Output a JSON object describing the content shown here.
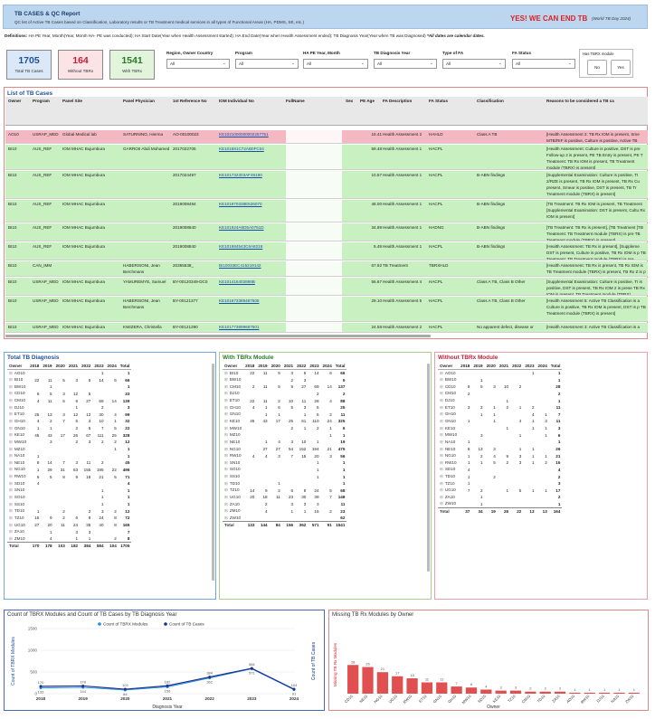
{
  "header": {
    "title": "TB CASES & QC Report",
    "subtitle": "QC list of Active TB Cases based on Classification, Laboratory results or TB Treatment medical services in all types of Functional Areas (HA, PDMS, SE, etc.)",
    "slogan": "YES! WE CAN END TB",
    "world_day": "(World TB Day 2024)"
  },
  "definitions": {
    "label": "Definitions:",
    "text": "HA PE Year, Month(Year, Month HA- PE was conducted); HA Start Date(Year when Health Assessment started); HA End Date(Year when Health Assessment ended); TB Diagnosis Year(Year when TB was Diagnosed)",
    "note": "*All dates are calendar dates."
  },
  "kpis": [
    {
      "value": "1705",
      "label": "Total TB Cases",
      "bg": "#dbe8f8",
      "color": "#1f4f9c"
    },
    {
      "value": "164",
      "label": "Without TBRx",
      "bg": "#fbe3e6",
      "color": "#c0203a"
    },
    {
      "value": "1541",
      "label": "With TBRx",
      "bg": "#e2f5dc",
      "color": "#267a26"
    }
  ],
  "filters": [
    {
      "label": "Region, Owner Country",
      "value": "All"
    },
    {
      "label": "Program",
      "value": "All"
    },
    {
      "label": "HA PE Year, Month",
      "value": "All"
    },
    {
      "label": "TB Diagnosis Year",
      "value": "All"
    },
    {
      "label": "Type of FA",
      "value": "All"
    },
    {
      "label": "FA Status",
      "value": "All"
    }
  ],
  "tbrx_filter": {
    "label": "Has TBRX module",
    "no": "No",
    "yes": "Yes"
  },
  "list": {
    "title": "List of TB Cases",
    "columns": [
      "Owner",
      "Program",
      "Panel Site",
      "Panel Physician",
      "1st Reference No",
      "IOM Individual No",
      "FullName",
      "Sex",
      "PE Age",
      "FA Description",
      "FA Status",
      "Classification",
      "Reasons to be considered a TB ca"
    ],
    "rows": [
      {
        "owner": "AO10",
        "program": "USRAP_MED",
        "site": "Global Medical lab",
        "phys": "SATURNINO, Hierma",
        "ref": "AO-00100023",
        "iom": "KE1021000000002257751",
        "age": "15.41",
        "fa": "Health Assessment 2",
        "st": "HAHLD",
        "cls": "Class A TB",
        "reason": "[Health Assessment 2: TB Rx IOM is present, Sme MTB/RIF is positive, Culture is positive, Active TB assigned, DST is present]"
      },
      {
        "owner": "BI10",
        "program": "AUS_REF",
        "site": "IOM MHAC Bujumbura",
        "phys": "GARROII Abdi Mohamed",
        "ref": "2017022705",
        "iom": "KE101881C72AB0FC04",
        "age": "59.48",
        "fa": "Health Assessment 1",
        "st": "HACPL",
        "cls": "",
        "reason": "[Health Assessment: Culture is positive, DST is pre Follow-up 2 is present, PE TB Entry is present, PE T Treatment: TB Rx IOM is present, TB Treatment module (TBRX) is present]"
      },
      {
        "owner": "BI10",
        "program": "AUS_REF",
        "site": "IOM MHAC Bujumbura",
        "phys": "",
        "ref": "2017024497",
        "iom": "KE101732303AF49190",
        "age": "10.57",
        "fa": "Health Assessment 1",
        "st": "HACPL",
        "cls": "B-ABN findings",
        "reason": "[Supplemental Examination: Culture is positive, TI 2/RZE is present, TB Rx IOM is present, TB Rx Cu present, Smear is positive, DST is present, TB Tr Treatment module (TBRX) is present]"
      },
      {
        "owner": "BI10",
        "program": "AUS_REF",
        "site": "IOM MHAC Bujumbura",
        "phys": "",
        "ref": "2019008484",
        "iom": "KE101970338E526070",
        "age": "48.00",
        "fa": "Health Assessment 1",
        "st": "HACPL",
        "cls": "B-ABN findings",
        "reason": "[TB Treatment: TB Rx IOM is present, TB Treatment [Supplemental Examination: DST is present, Cultu Rx IOM is present]"
      },
      {
        "owner": "BI10",
        "program": "AUS_REF",
        "site": "IOM MHAC Bujumbura",
        "phys": "",
        "ref": "2019008840",
        "iom": "KE101924A6D5A0751D",
        "age": "34.89",
        "fa": "Health Assessment 1",
        "st": "HADNG",
        "cls": "B-ABN findings",
        "reason": "[TB Treatment: TB Rx is present], [TB Treatment [TB Treatment: TB Treatment module (TBRX) is pre TB Treatment module (TBRX) is present]"
      },
      {
        "owner": "BI10",
        "program": "AUS_REF",
        "site": "IOM MHAC Bujumbura",
        "phys": "",
        "ref": "2019008840",
        "iom": "KE101984543C6A8218",
        "age": "5.49",
        "fa": "Health Assessment 1",
        "st": "HACPL",
        "cls": "B-ABN findings",
        "reason": "[Health Assessment: TB Rx is present], [Suppleme DST is present, Culture is positive, TB Rx IOM is p TB Treatment: TB Treatment module (TBRX) is pre [Supplemental Examination: TB Rx IOM is present,"
      },
      {
        "owner": "BI10",
        "program": "CAN_IMM",
        "site": "",
        "phys": "HABERISONI, Jean Berchmans",
        "ref": "20355538_",
        "iom": "BI10033EC415219142",
        "age": "67.92",
        "fa": "TB Treatment",
        "st": "TBRXHLD",
        "cls": "",
        "reason": "[Health Assessment: TB Rx is present, TB Rx IOM is TB Treatment module (TBRX) is present, TB Rx Z is p"
      },
      {
        "owner": "BI10",
        "program": "USRAP_MED",
        "site": "IOM MHAC Bujumbura",
        "phys": "YAMUREMYE, Samuel",
        "ref": "BY-00120349-DC0",
        "iom": "KE101416402898B",
        "age": "56.67",
        "fa": "Health Assessment 4",
        "st": "HACPL",
        "cls": "Class A TB, Class B Other",
        "reason": "[Supplemental Examination: Culture is positive, TI is positive, DST is present, TB Rx IOM 2 is prese TB Rx IOM is present, TB Treatment module (TBRX)"
      },
      {
        "owner": "BI10",
        "program": "USRAP_MED",
        "site": "IOM MHAC Bujumbura",
        "phys": "HABERISONI, Jean Berchmans",
        "ref": "BY-00121377",
        "iom": "KE101673389487505",
        "age": "29.10",
        "fa": "Health Assessment 5",
        "st": "HACPL",
        "cls": "Class A TB, Class B Other",
        "reason": "[Health Assessment 5: Active TB Classification is a Culture is positive, TB Rx IOM is present, DST is p TB Treatment module (TBRX) is present]"
      },
      {
        "owner": "BI10",
        "program": "USRAP_MED",
        "site": "IOM MHAC Bujumbura",
        "phys": "KWIZERA, Christella",
        "ref": "BY-00121390",
        "iom": "KE101773899687501",
        "age": "24.58",
        "fa": "Health Assessment 2",
        "st": "HACPL",
        "cls": "No apparent defect, disease or",
        "reason": "[Health Assessment 3: Active TB Classification is a"
      }
    ]
  },
  "total_diag": {
    "title": "Total TB Diagnosis",
    "cols": [
      "Owner",
      "2018",
      "2019",
      "2020",
      "2021",
      "2022",
      "2023",
      "2024",
      "Total"
    ],
    "rows": [
      [
        "AO10",
        "",
        "",
        "",
        "",
        "",
        "1",
        "",
        "1"
      ],
      [
        "BI10",
        "22",
        "11",
        "5",
        "3",
        "5",
        "14",
        "6",
        "66"
      ],
      [
        "BW10",
        "",
        "1",
        "",
        "",
        "",
        "",
        "",
        "1"
      ],
      [
        "CD10",
        "8",
        "5",
        "3",
        "12",
        "5",
        "",
        "",
        "33"
      ],
      [
        "CM10",
        "4",
        "11",
        "5",
        "9",
        "27",
        "69",
        "14",
        "139"
      ],
      [
        "DJ10",
        "",
        "",
        "",
        "1",
        "",
        "2",
        "",
        "3"
      ],
      [
        "ET10",
        "25",
        "13",
        "3",
        "12",
        "12",
        "30",
        "4",
        "99"
      ],
      [
        "GH10",
        "4",
        "2",
        "7",
        "5",
        "3",
        "10",
        "1",
        "32"
      ],
      [
        "GN10",
        "1",
        "1",
        "",
        "2",
        "5",
        "7",
        "5",
        "22"
      ],
      [
        "KE10",
        "45",
        "43",
        "17",
        "26",
        "67",
        "111",
        "25",
        "328"
      ],
      [
        "MW10",
        "",
        "3",
        "",
        "2",
        "3",
        "2",
        "2",
        "12"
      ],
      [
        "MZ10",
        "",
        "",
        "",
        "",
        "",
        "",
        "1",
        "1"
      ],
      [
        "NA10",
        "1",
        "",
        "",
        "",
        "",
        "",
        "",
        "1"
      ],
      [
        "NE10",
        "8",
        "14",
        "7",
        "3",
        "11",
        "2",
        "",
        "45"
      ],
      [
        "NG10",
        "1",
        "29",
        "31",
        "63",
        "155",
        "195",
        "22",
        "496"
      ],
      [
        "RW10",
        "5",
        "5",
        "8",
        "9",
        "18",
        "21",
        "5",
        "71"
      ],
      [
        "SD10",
        "4",
        "",
        "",
        "",
        "",
        "",
        "",
        "4"
      ],
      [
        "SN10",
        "",
        "",
        "",
        "",
        "",
        "1",
        "",
        "1"
      ],
      [
        "SO10",
        "",
        "",
        "",
        "",
        "",
        "1",
        "",
        "1"
      ],
      [
        "SS10",
        "",
        "",
        "",
        "",
        "",
        "1",
        "",
        "1"
      ],
      [
        "TD10",
        "1",
        "",
        "2",
        "",
        "2",
        "3",
        "2",
        "12"
      ],
      [
        "TZ10",
        "15",
        "9",
        "2",
        "6",
        "8",
        "24",
        "8",
        "72"
      ],
      [
        "UG10",
        "27",
        "20",
        "11",
        "24",
        "35",
        "40",
        "8",
        "165"
      ],
      [
        "ZA10",
        "",
        "1",
        "",
        "3",
        "3",
        "",
        "",
        "7"
      ],
      [
        "ZM10",
        "",
        "4",
        "",
        "1",
        "1",
        "",
        "2",
        "8"
      ]
    ],
    "total": [
      "Total",
      "170",
      "178",
      "103",
      "182",
      "384",
      "584",
      "104",
      "1705"
    ]
  },
  "with_rx": {
    "title": "With TBRx Module",
    "cols": [
      "Owner",
      "2018",
      "2019",
      "2020",
      "2021",
      "2022",
      "2023",
      "2024",
      "Total"
    ],
    "rows": [
      [
        "BI10",
        "22",
        "11",
        "5",
        "3",
        "5",
        "14",
        "6",
        "66"
      ],
      [
        "BW10",
        "",
        "",
        "",
        "2",
        "3",
        "",
        "",
        "5"
      ],
      [
        "CM10",
        "2",
        "11",
        "5",
        "9",
        "27",
        "69",
        "14",
        "137"
      ],
      [
        "DJ10",
        "",
        "",
        "",
        "",
        "",
        "2",
        "",
        "2"
      ],
      [
        "ET10",
        "22",
        "11",
        "2",
        "10",
        "11",
        "28",
        "4",
        "88"
      ],
      [
        "GH10",
        "4",
        "1",
        "6",
        "5",
        "3",
        "6",
        "",
        "25"
      ],
      [
        "GN10",
        "",
        "1",
        "1",
        "",
        "1",
        "6",
        "2",
        "11"
      ],
      [
        "KE10",
        "45",
        "43",
        "17",
        "25",
        "61",
        "110",
        "24",
        "325"
      ],
      [
        "MW10",
        "",
        "",
        "",
        "2",
        "1",
        "2",
        "1",
        "6"
      ],
      [
        "MZ10",
        "",
        "",
        "",
        "",
        "",
        "",
        "1",
        "1"
      ],
      [
        "NE10",
        "",
        "1",
        "4",
        "3",
        "10",
        "1",
        "",
        "19"
      ],
      [
        "NG10",
        "",
        "27",
        "27",
        "54",
        "152",
        "194",
        "21",
        "475"
      ],
      [
        "RW10",
        "4",
        "4",
        "3",
        "7",
        "15",
        "20",
        "3",
        "56"
      ],
      [
        "SN10",
        "",
        "",
        "",
        "",
        "",
        "1",
        "",
        "1"
      ],
      [
        "SO10",
        "",
        "",
        "",
        "",
        "",
        "1",
        "",
        "1"
      ],
      [
        "SS10",
        "",
        "",
        "",
        "",
        "",
        "1",
        "",
        "1"
      ],
      [
        "TD10",
        "",
        "",
        "1",
        "",
        "",
        "",
        "",
        "1"
      ],
      [
        "TZ10",
        "14",
        "9",
        "2",
        "6",
        "8",
        "24",
        "5",
        "68"
      ],
      [
        "UG10",
        "20",
        "18",
        "11",
        "23",
        "30",
        "39",
        "7",
        "148"
      ],
      [
        "ZA10",
        "",
        "2",
        "",
        "3",
        "3",
        "3",
        "",
        "11"
      ],
      [
        "ZM10",
        "",
        "4",
        "",
        "1",
        "1",
        "15",
        "2",
        "23"
      ],
      [
        "ZW10",
        "",
        "",
        "",
        "",
        "",
        "",
        "",
        "62"
      ]
    ],
    "total": [
      "Total",
      "133",
      "144",
      "84",
      "156",
      "362",
      "571",
      "91",
      "1541"
    ]
  },
  "without_rx": {
    "title": "Without TBRx Module",
    "cols": [
      "Owner",
      "2018",
      "2019",
      "2020",
      "2021",
      "2022",
      "2023",
      "2024",
      "Total"
    ],
    "rows": [
      [
        "AO10",
        "",
        "",
        "",
        "",
        "",
        "1",
        "",
        "1"
      ],
      [
        "BW10",
        "",
        "1",
        "",
        "",
        "",
        "",
        "",
        "1"
      ],
      [
        "CD10",
        "8",
        "5",
        "3",
        "10",
        "2",
        "",
        "",
        "28"
      ],
      [
        "CM10",
        "2",
        "",
        "",
        "",
        "",
        "",
        "",
        "2"
      ],
      [
        "DJ10",
        "",
        "",
        "",
        "1",
        "",
        "",
        "",
        "1"
      ],
      [
        "ET10",
        "3",
        "2",
        "1",
        "2",
        "1",
        "2",
        "",
        "11"
      ],
      [
        "GH10",
        "",
        "1",
        "1",
        "",
        "",
        "4",
        "1",
        "7"
      ],
      [
        "GN10",
        "1",
        "",
        "1",
        "",
        "4",
        "1",
        "3",
        "11"
      ],
      [
        "KE10",
        "",
        "",
        "",
        "1",
        "",
        "1",
        "1",
        "3"
      ],
      [
        "MW10",
        "",
        "3",
        "",
        "",
        "1",
        "",
        "1",
        "6"
      ],
      [
        "NA10",
        "1",
        "",
        "",
        "",
        "",
        "",
        "",
        "1"
      ],
      [
        "NE10",
        "8",
        "13",
        "3",
        "",
        "1",
        "1",
        "",
        "26"
      ],
      [
        "NG10",
        "1",
        "2",
        "4",
        "9",
        "3",
        "1",
        "1",
        "21"
      ],
      [
        "RW10",
        "1",
        "1",
        "5",
        "2",
        "3",
        "1",
        "2",
        "15"
      ],
      [
        "SD10",
        "4",
        "",
        "",
        "",
        "",
        "",
        "",
        "4"
      ],
      [
        "TD10",
        "1",
        "",
        "2",
        "",
        "",
        "",
        "",
        "2"
      ],
      [
        "TZ10",
        "1",
        "",
        "",
        "",
        "",
        "",
        "",
        "3"
      ],
      [
        "UG10",
        "7",
        "2",
        "",
        "1",
        "5",
        "1",
        "1",
        "17"
      ],
      [
        "ZA10",
        "",
        "1",
        "",
        "",
        "",
        "",
        "",
        "2"
      ],
      [
        "ZW10",
        "",
        "1",
        "",
        "",
        "",
        "",
        "",
        "1"
      ]
    ],
    "total": [
      "Total",
      "37",
      "34",
      "19",
      "26",
      "22",
      "13",
      "13",
      "164"
    ]
  },
  "chart_data": [
    {
      "type": "line",
      "title": "Count of TBRX Modules and Count of TB Cases by TB Diagnosis Year",
      "xlabel": "Diagnosis Year",
      "ylabel": "Count of TBRX Modules",
      "ylabel_right": "Count of TB Cases",
      "legend": "top-center",
      "x": [
        "2018",
        "2019",
        "2020",
        "2021",
        "2022",
        "2023",
        "2024"
      ],
      "ylim": [
        0,
        1500
      ],
      "yticks": [
        0,
        500,
        1000,
        1500
      ],
      "series": [
        {
          "name": "Count of TBRX Modules",
          "color": "#1f8fe0",
          "values": [
            133,
            144,
            84,
            156,
            362,
            571,
            91
          ]
        },
        {
          "name": "Count of TB Cases",
          "color": "#1a2f8c",
          "values": [
            170,
            178,
            103,
            182,
            384,
            584,
            104
          ]
        }
      ]
    },
    {
      "type": "bar",
      "title": "Missing TB Rx Modules by Owner",
      "xlabel": "Owner",
      "ylabel": "Missing TB Rx Modules",
      "color": "#e05050",
      "categories": [
        "CD10",
        "NE10",
        "NG10",
        "UG10",
        "RW10",
        "ET10",
        "GN10",
        "GH10",
        "MW10",
        "SD10",
        "KE10",
        "TZ10",
        "CM10",
        "TD10",
        "ZA10",
        "AO10",
        "BW10",
        "DJ10",
        "NA10",
        "ZW10"
      ],
      "values": [
        28,
        26,
        21,
        17,
        15,
        11,
        11,
        7,
        6,
        4,
        3,
        3,
        2,
        2,
        2,
        1,
        1,
        1,
        1,
        1
      ]
    }
  ]
}
